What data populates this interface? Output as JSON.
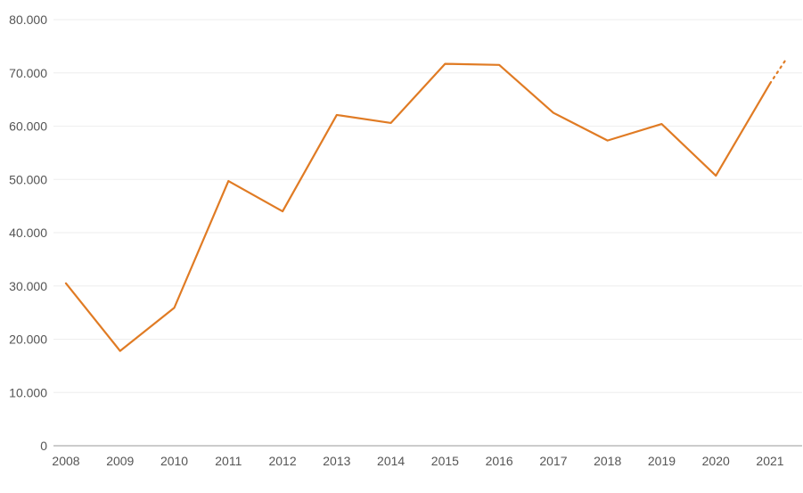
{
  "chart_data": {
    "type": "line",
    "title": "",
    "xlabel": "",
    "ylabel": "",
    "categories": [
      "2008",
      "2009",
      "2010",
      "2011",
      "2012",
      "2013",
      "2014",
      "2015",
      "2016",
      "2017",
      "2018",
      "2019",
      "2020",
      "2021"
    ],
    "series": [
      {
        "values": [
          30500,
          17800,
          25900,
          49700,
          44000,
          62100,
          60600,
          71700,
          71500,
          62500,
          57300,
          60400,
          50700,
          68000
        ],
        "color": "#e07b24"
      }
    ],
    "projection": {
      "from_value": 68000,
      "to_value": 72300,
      "style": "dotted",
      "color": "#e07b24"
    },
    "ylim": [
      0,
      80000
    ],
    "yticks": [
      {
        "value": 0,
        "label": "0"
      },
      {
        "value": 10000,
        "label": "10.000"
      },
      {
        "value": 20000,
        "label": "20.000"
      },
      {
        "value": 30000,
        "label": "30.000"
      },
      {
        "value": 40000,
        "label": "40.000"
      },
      {
        "value": 50000,
        "label": "50.000"
      },
      {
        "value": 60000,
        "label": "60.000"
      },
      {
        "value": 70000,
        "label": "70.000"
      },
      {
        "value": 80000,
        "label": "80.000"
      }
    ],
    "grid": true,
    "legend": "none"
  }
}
